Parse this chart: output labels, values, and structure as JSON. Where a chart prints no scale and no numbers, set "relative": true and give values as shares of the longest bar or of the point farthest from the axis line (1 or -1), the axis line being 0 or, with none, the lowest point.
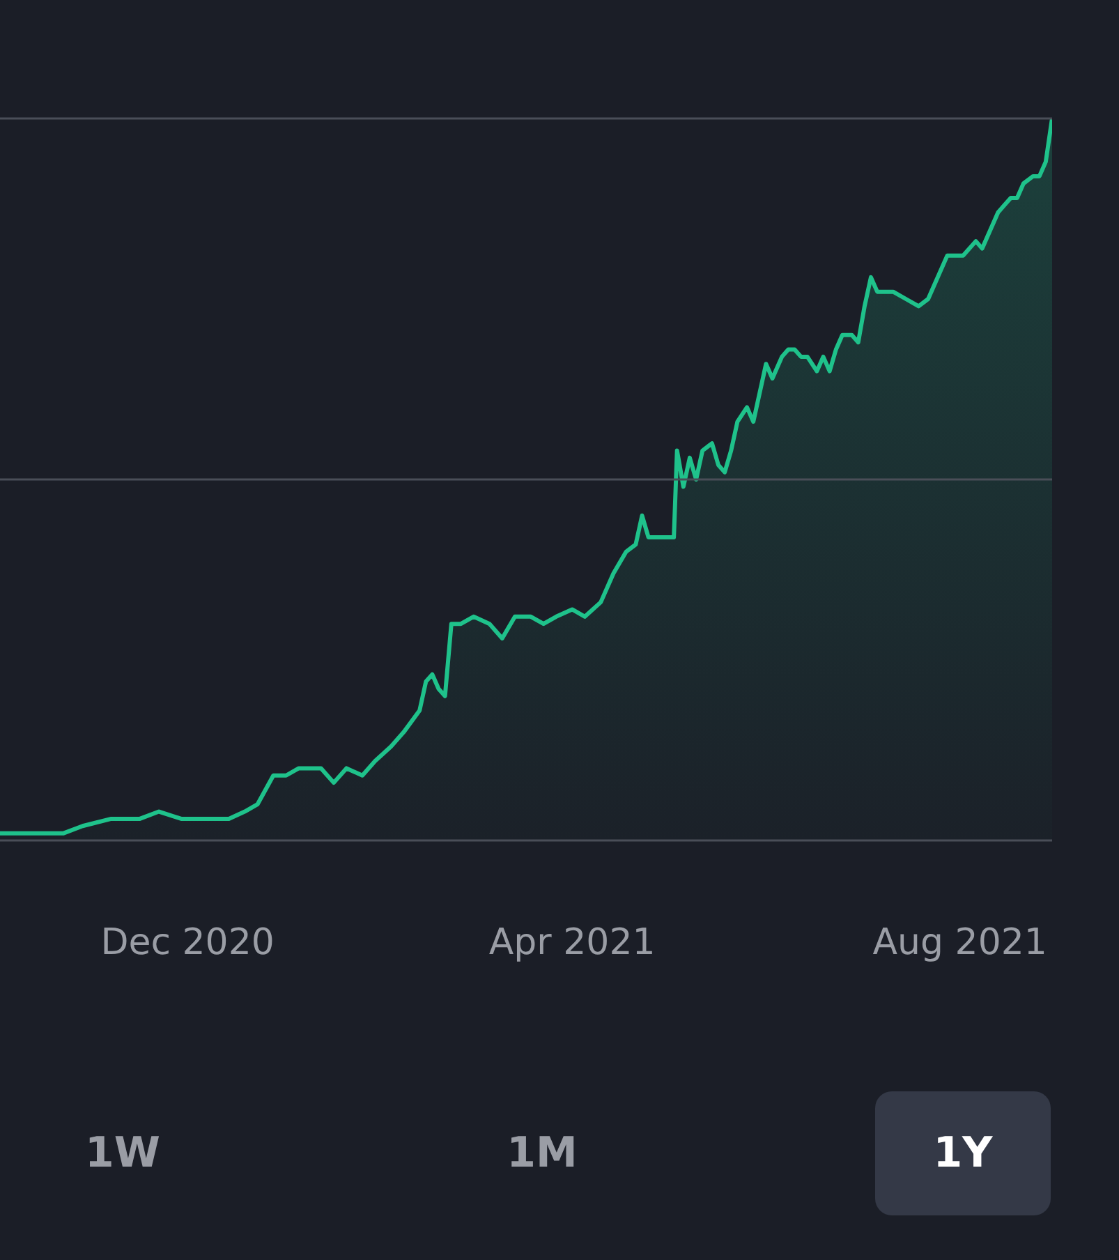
{
  "chart_data": {
    "type": "area",
    "relative": true,
    "ref_lines": [
      {
        "axis": "y",
        "value": 0.5,
        "color": "#4a4e58"
      },
      {
        "axis": "y",
        "value": 1,
        "color": "#4a4e58"
      }
    ],
    "marker": "none",
    "line_style": "solid",
    "xlim": [
      "2020-10-03",
      "2021-08-30"
    ],
    "xticks": [
      {
        "value": "2020-12-01",
        "label": "Dec 2020"
      },
      {
        "value": "2021-04-01",
        "label": "Apr 2021"
      },
      {
        "value": "2021-08-01",
        "label": "Aug 2021"
      }
    ],
    "x": [
      "2020-10-03",
      "2020-10-20",
      "2020-10-23",
      "2020-10-29",
      "2020-11-07",
      "2020-11-11",
      "2020-11-16",
      "2020-11-22",
      "2020-11-29",
      "2020-12-08",
      "2020-12-14",
      "2020-12-19",
      "2020-12-23",
      "2020-12-28",
      "2021-01-01",
      "2021-01-05",
      "2021-01-12",
      "2021-01-16",
      "2021-01-20",
      "2021-01-25",
      "2021-01-29",
      "2021-02-03",
      "2021-02-07",
      "2021-02-12",
      "2021-02-14",
      "2021-02-16",
      "2021-02-18",
      "2021-02-20",
      "2021-02-22",
      "2021-02-25",
      "2021-03-01",
      "2021-03-06",
      "2021-03-10",
      "2021-03-14",
      "2021-03-19",
      "2021-03-23",
      "2021-03-27",
      "2021-04-01",
      "2021-04-05",
      "2021-04-10",
      "2021-04-14",
      "2021-04-18",
      "2021-04-21",
      "2021-04-23",
      "2021-04-25",
      "2021-04-27",
      "2021-04-29",
      "2021-05-02",
      "2021-05-03",
      "2021-05-04",
      "2021-05-06",
      "2021-05-08",
      "2021-05-10",
      "2021-05-12",
      "2021-05-15",
      "2021-05-17",
      "2021-05-19",
      "2021-05-21",
      "2021-05-23",
      "2021-05-26",
      "2021-05-28",
      "2021-05-30",
      "2021-06-01",
      "2021-06-03",
      "2021-06-06",
      "2021-06-08",
      "2021-06-10",
      "2021-06-12",
      "2021-06-14",
      "2021-06-17",
      "2021-06-19",
      "2021-06-21",
      "2021-06-23",
      "2021-06-25",
      "2021-06-28",
      "2021-06-30",
      "2021-07-02",
      "2021-07-04",
      "2021-07-06",
      "2021-07-11",
      "2021-07-15",
      "2021-07-19",
      "2021-07-22",
      "2021-07-24",
      "2021-07-28",
      "2021-07-30",
      "2021-08-02",
      "2021-08-06",
      "2021-08-08",
      "2021-08-13",
      "2021-08-15",
      "2021-08-17",
      "2021-08-19",
      "2021-08-21",
      "2021-08-24",
      "2021-08-26",
      "2021-08-28",
      "2021-08-30"
    ],
    "series": [
      {
        "color": "#1fc28b",
        "values": [
          0.01,
          0.01,
          0.01,
          0.02,
          0.03,
          0.03,
          0.03,
          0.04,
          0.03,
          0.03,
          0.03,
          0.04,
          0.05,
          0.09,
          0.09,
          0.1,
          0.1,
          0.08,
          0.1,
          0.09,
          0.11,
          0.13,
          0.15,
          0.18,
          0.22,
          0.23,
          0.21,
          0.2,
          0.3,
          0.3,
          0.31,
          0.3,
          0.28,
          0.31,
          0.31,
          0.3,
          0.31,
          0.32,
          0.31,
          0.33,
          0.37,
          0.4,
          0.41,
          0.45,
          0.42,
          0.42,
          0.42,
          0.42,
          0.42,
          0.54,
          0.49,
          0.53,
          0.5,
          0.54,
          0.55,
          0.52,
          0.51,
          0.54,
          0.58,
          0.6,
          0.58,
          0.62,
          0.66,
          0.64,
          0.67,
          0.68,
          0.68,
          0.67,
          0.67,
          0.65,
          0.67,
          0.65,
          0.68,
          0.7,
          0.7,
          0.69,
          0.74,
          0.78,
          0.76,
          0.76,
          0.75,
          0.74,
          0.75,
          0.77,
          0.81,
          0.81,
          0.81,
          0.83,
          0.82,
          0.87,
          0.88,
          0.89,
          0.89,
          0.91,
          0.92,
          0.92,
          0.94,
          1
        ]
      }
    ],
    "annotations": [
      "1W",
      "1M",
      "1Y"
    ]
  }
}
